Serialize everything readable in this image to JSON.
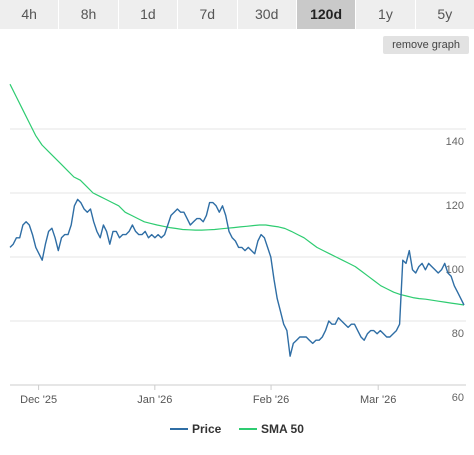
{
  "range_tabs": {
    "items": [
      "4h",
      "8h",
      "1d",
      "7d",
      "30d",
      "120d",
      "1y",
      "5y"
    ],
    "active": "120d"
  },
  "remove_button_label": "remove graph",
  "chart_data": {
    "type": "line",
    "x_tick_labels": [
      "Dec '25",
      "Jan '26",
      "Feb '26",
      "Mar '26"
    ],
    "y_tick_labels": [
      "60",
      "80",
      "100",
      "120",
      "140"
    ],
    "ylim": [
      60,
      160
    ],
    "grid": "horizontal",
    "legend_placement": "bottom-center",
    "series": [
      {
        "name": "Price",
        "color": "#2f6ea5",
        "values": [
          103,
          104,
          106,
          106,
          110,
          111,
          110,
          107,
          103,
          101,
          99,
          104,
          108,
          109,
          106,
          102,
          106,
          107,
          107,
          110,
          116,
          118,
          117,
          115,
          114,
          115,
          111,
          108,
          106,
          110,
          108,
          104,
          108,
          108,
          106,
          107,
          107,
          108,
          110,
          108,
          107,
          107,
          108,
          106,
          107,
          106,
          107,
          106,
          107,
          110,
          113,
          114,
          115,
          114,
          114,
          112,
          110,
          111,
          112,
          112,
          111,
          113,
          117,
          117,
          116,
          114,
          116,
          113,
          108,
          106,
          105,
          103,
          103,
          102,
          103,
          102,
          101,
          105,
          107,
          106,
          103,
          100,
          93,
          87,
          83,
          79,
          77,
          69,
          73,
          74,
          75,
          75,
          75,
          74,
          73,
          74,
          74,
          75,
          77,
          80,
          79,
          79,
          81,
          80,
          79,
          78,
          79,
          79,
          77,
          75,
          74,
          76,
          77,
          77,
          76,
          77,
          76,
          75,
          75,
          76,
          77,
          79,
          99,
          98,
          102,
          96,
          95,
          97,
          98,
          96,
          98,
          97,
          96,
          95,
          96,
          98,
          95,
          94,
          91,
          89,
          87,
          85
        ]
      },
      {
        "name": "SMA 50",
        "color": "#2ecc71",
        "values": [
          154,
          150,
          146,
          142,
          138,
          135,
          133,
          131,
          129,
          127,
          125,
          124,
          122,
          120,
          119,
          118,
          117,
          116,
          114,
          113,
          112,
          111,
          110.5,
          110,
          109.6,
          109.2,
          108.9,
          108.6,
          108.5,
          108.4,
          108.4,
          108.5,
          108.6,
          108.8,
          109,
          109.2,
          109.4,
          109.6,
          109.8,
          110,
          110,
          109.7,
          109.4,
          108.9,
          108,
          107,
          106,
          104.5,
          103,
          102,
          101,
          100,
          99,
          98,
          97,
          95.5,
          94,
          92.5,
          91,
          90,
          89,
          88.3,
          87.8,
          87.3,
          87,
          86.8,
          86.5,
          86.2,
          85.9,
          85.6,
          85.3,
          85
        ]
      }
    ]
  }
}
